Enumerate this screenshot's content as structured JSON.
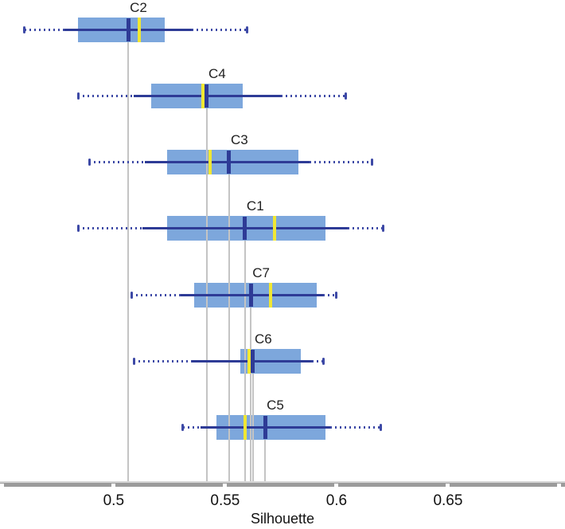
{
  "chart_data": {
    "type": "boxplot",
    "orientation": "horizontal",
    "title": "",
    "xlabel": "Silhouette",
    "x_range": [
      0.449,
      0.7025
    ],
    "x_ticks": [
      {
        "value": 0.45,
        "label": ""
      },
      {
        "value": 0.5,
        "label": "0.5"
      },
      {
        "value": 0.55,
        "label": "0.55"
      },
      {
        "value": 0.6,
        "label": "0.6"
      },
      {
        "value": 0.65,
        "label": "0.65"
      },
      {
        "value": 0.7,
        "label": ""
      }
    ],
    "legend": "none",
    "grid": "vertical drop line from each median down to the x-axis",
    "series": [
      {
        "label": "C2",
        "min": 0.46,
        "whisker_low": 0.478,
        "q1": 0.484,
        "median": 0.5065,
        "mean": 0.5115,
        "q3": 0.523,
        "whisker_high": 0.535,
        "max": 0.56
      },
      {
        "label": "C4",
        "min": 0.484,
        "whisker_low": 0.509,
        "q1": 0.517,
        "median": 0.5418,
        "mean": 0.54,
        "q3": 0.558,
        "whisker_high": 0.575,
        "max": 0.604
      },
      {
        "label": "C3",
        "min": 0.489,
        "whisker_low": 0.514,
        "q1": 0.524,
        "median": 0.5518,
        "mean": 0.5432,
        "q3": 0.583,
        "whisker_high": 0.588,
        "max": 0.616
      },
      {
        "label": "C1",
        "min": 0.484,
        "whisker_low": 0.513,
        "q1": 0.524,
        "median": 0.5589,
        "mean": 0.5721,
        "q3": 0.595,
        "whisker_high": 0.605,
        "max": 0.621
      },
      {
        "label": "C7",
        "min": 0.508,
        "whisker_low": 0.53,
        "q1": 0.536,
        "median": 0.5615,
        "mean": 0.5704,
        "q3": 0.591,
        "whisker_high": 0.594,
        "max": 0.6
      },
      {
        "label": "C6",
        "min": 0.509,
        "whisker_low": 0.535,
        "q1": 0.557,
        "median": 0.5625,
        "mean": 0.5607,
        "q3": 0.584,
        "whisker_high": 0.589,
        "max": 0.594
      },
      {
        "label": "C5",
        "min": 0.531,
        "whisker_low": 0.539,
        "q1": 0.546,
        "median": 0.5679,
        "mean": 0.559,
        "q3": 0.595,
        "whisker_high": 0.597,
        "max": 0.62
      }
    ],
    "colors": {
      "box_fill": "#7DA7DC",
      "solid_whisker": "#2E3B96",
      "dotted_whisker": "#3D49A6",
      "median": "#2E3B96",
      "mean": "#F0E733",
      "drop_line": "#C4C4C4",
      "axis_dark": "#9B9B9B",
      "axis_light": "#D6D6D6",
      "text": "#111111"
    }
  }
}
